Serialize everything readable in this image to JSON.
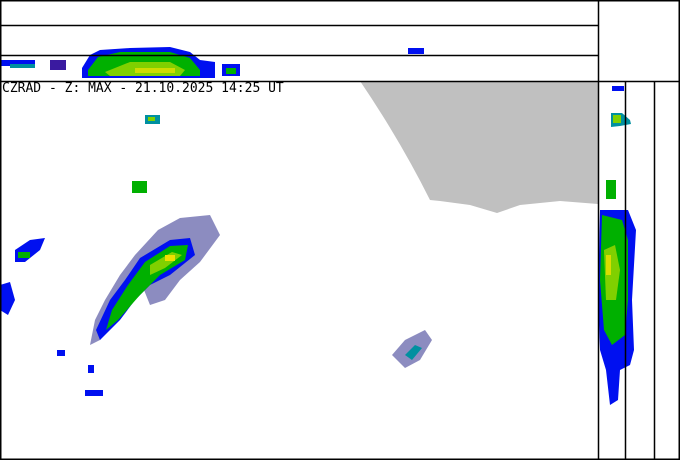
{
  "title": "CZRAD - Z: MAX - 21.10.2025 14:25 UT",
  "colors": {
    "background": "#ffffff",
    "out_of_range": "#c0c0c0",
    "frame": "#000000",
    "echo_weak": "#3a1aa0",
    "echo_blue": "#0010f0",
    "echo_teal": "#0090a0",
    "echo_green": "#00b000",
    "echo_lime": "#80d000",
    "echo_yellow": "#f0e000"
  },
  "views": [
    "top-projection",
    "plan-view",
    "side-projection"
  ]
}
